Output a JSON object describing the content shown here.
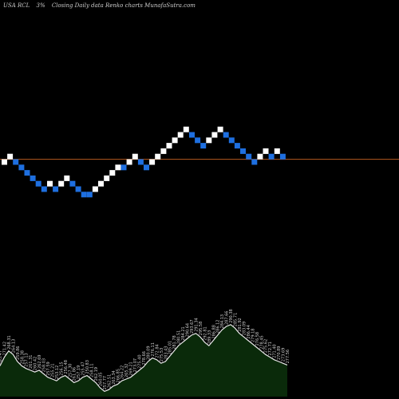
{
  "header": {
    "symbol": "USA RCL",
    "change": "3%",
    "caption": "Closing Daily data  Renko  charts MunafaSutra.com"
  },
  "colors": {
    "background": "#000000",
    "up_brick": "#ffffff",
    "down_brick": "#1e6fe0",
    "last_price_line": "#b45a1e",
    "volume_fill": "#0a2a0a",
    "volume_stroke": "#e8e8e8",
    "label_text": "#cfcfcf"
  },
  "chart_data": {
    "type": "renko",
    "brick_size": 3,
    "last_price_line": 0.5,
    "bricks": [
      {
        "dir": "up",
        "level": 0
      },
      {
        "dir": "up",
        "level": 1
      },
      {
        "dir": "down",
        "level": 0
      },
      {
        "dir": "down",
        "level": -1
      },
      {
        "dir": "down",
        "level": -2
      },
      {
        "dir": "down",
        "level": -3
      },
      {
        "dir": "down",
        "level": -4
      },
      {
        "dir": "down",
        "level": -5
      },
      {
        "dir": "up",
        "level": -4
      },
      {
        "dir": "down",
        "level": -5
      },
      {
        "dir": "up",
        "level": -4
      },
      {
        "dir": "up",
        "level": -3
      },
      {
        "dir": "down",
        "level": -4
      },
      {
        "dir": "down",
        "level": -5
      },
      {
        "dir": "down",
        "level": -6
      },
      {
        "dir": "down",
        "level": -6
      },
      {
        "dir": "up",
        "level": -5
      },
      {
        "dir": "up",
        "level": -4
      },
      {
        "dir": "up",
        "level": -3
      },
      {
        "dir": "up",
        "level": -2
      },
      {
        "dir": "up",
        "level": -1
      },
      {
        "dir": "down",
        "level": -1
      },
      {
        "dir": "up",
        "level": 0
      },
      {
        "dir": "up",
        "level": 1
      },
      {
        "dir": "down",
        "level": 0
      },
      {
        "dir": "down",
        "level": -1
      },
      {
        "dir": "up",
        "level": 0
      },
      {
        "dir": "up",
        "level": 1
      },
      {
        "dir": "up",
        "level": 2
      },
      {
        "dir": "up",
        "level": 3
      },
      {
        "dir": "up",
        "level": 4
      },
      {
        "dir": "up",
        "level": 5
      },
      {
        "dir": "up",
        "level": 6
      },
      {
        "dir": "down",
        "level": 5
      },
      {
        "dir": "down",
        "level": 4
      },
      {
        "dir": "down",
        "level": 3
      },
      {
        "dir": "up",
        "level": 4
      },
      {
        "dir": "up",
        "level": 5
      },
      {
        "dir": "up",
        "level": 6
      },
      {
        "dir": "down",
        "level": 5
      },
      {
        "dir": "down",
        "level": 4
      },
      {
        "dir": "down",
        "level": 3
      },
      {
        "dir": "down",
        "level": 2
      },
      {
        "dir": "down",
        "level": 1
      },
      {
        "dir": "down",
        "level": 0
      },
      {
        "dir": "up",
        "level": 1
      },
      {
        "dir": "up",
        "level": 2
      },
      {
        "dir": "down",
        "level": 1
      },
      {
        "dir": "up",
        "level": 2
      },
      {
        "dir": "down",
        "level": 1
      }
    ],
    "price_labels": [
      "265.47",
      "271.42",
      "268.31",
      "264.13",
      "259.86",
      "258.38",
      "257.13",
      "261.31",
      "260.42",
      "262.69",
      "258.03",
      "257.59",
      "255.21",
      "253.12",
      "256.15",
      "256.48",
      "257.30",
      "261.86",
      "257.19",
      "255.47",
      "250.83",
      "258.11",
      "262.19",
      "260.05",
      "257.77",
      "262.51",
      "263.34",
      "266.85",
      "264.22",
      "265.32",
      "269.21",
      "273.07",
      "275.40",
      "278.66",
      "280.09",
      "276.11",
      "272.84",
      "275.53",
      "283.43",
      "285.01",
      "281.78",
      "280.51",
      "284.21",
      "290.64",
      "293.67",
      "291.34",
      "295.58",
      "292.81",
      "289.33",
      "286.88",
      "286.12",
      "284.13",
      "287.66",
      "290.38",
      "285.71",
      "281.92",
      "283.09",
      "286.44",
      "279.18",
      "276.58",
      "278.45",
      "275.62",
      "272.71",
      "271.40",
      "270.89",
      "273.69",
      "277.56"
    ],
    "volume": [
      0.35,
      0.45,
      0.52,
      0.48,
      0.4,
      0.35,
      0.32,
      0.3,
      0.28,
      0.3,
      0.26,
      0.22,
      0.2,
      0.18,
      0.22,
      0.24,
      0.2,
      0.16,
      0.18,
      0.22,
      0.24,
      0.2,
      0.16,
      0.1,
      0.06,
      0.08,
      0.12,
      0.14,
      0.18,
      0.2,
      0.22,
      0.26,
      0.3,
      0.34,
      0.4,
      0.44,
      0.42,
      0.38,
      0.4,
      0.46,
      0.52,
      0.58,
      0.62,
      0.66,
      0.7,
      0.72,
      0.68,
      0.62,
      0.58,
      0.64,
      0.7,
      0.76,
      0.8,
      0.82,
      0.78,
      0.72,
      0.68,
      0.64,
      0.6,
      0.56,
      0.52,
      0.48,
      0.45,
      0.42,
      0.4,
      0.38,
      0.36
    ]
  }
}
